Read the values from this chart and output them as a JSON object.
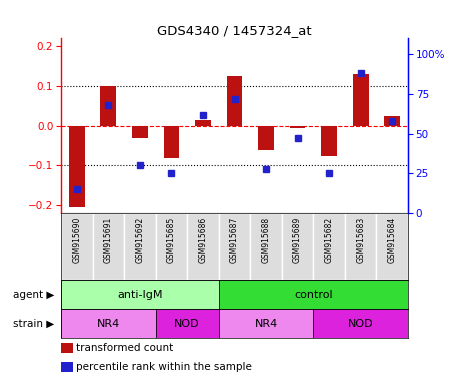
{
  "title": "GDS4340 / 1457324_at",
  "samples": [
    "GSM915690",
    "GSM915691",
    "GSM915692",
    "GSM915685",
    "GSM915686",
    "GSM915687",
    "GSM915688",
    "GSM915689",
    "GSM915682",
    "GSM915683",
    "GSM915684"
  ],
  "red_values": [
    -0.205,
    0.1,
    -0.03,
    -0.08,
    0.015,
    0.125,
    -0.06,
    -0.005,
    -0.075,
    0.13,
    0.025
  ],
  "blue_values": [
    15,
    68,
    30,
    25,
    62,
    72,
    28,
    47,
    25,
    88,
    58
  ],
  "ylim_left": [
    -0.22,
    0.22
  ],
  "ylim_right": [
    0,
    110
  ],
  "yticks_left": [
    -0.2,
    -0.1,
    0.0,
    0.1,
    0.2
  ],
  "yticks_right": [
    0,
    25,
    50,
    75,
    100
  ],
  "ytick_labels_right": [
    "0",
    "25",
    "50",
    "75",
    "100%"
  ],
  "hlines": [
    -0.1,
    0.0,
    0.1
  ],
  "hline_styles": [
    "dotted",
    "dashed",
    "dotted"
  ],
  "hline_colors": [
    "black",
    "red",
    "black"
  ],
  "bar_color": "#BB1111",
  "dot_color": "#2222CC",
  "agent_groups": [
    {
      "label": "anti-IgM",
      "start": 0,
      "end": 5,
      "color": "#AAFFAA"
    },
    {
      "label": "control",
      "start": 5,
      "end": 11,
      "color": "#33DD33"
    }
  ],
  "strain_groups": [
    {
      "label": "NR4",
      "start": 0,
      "end": 3,
      "color": "#EE88EE"
    },
    {
      "label": "NOD",
      "start": 3,
      "end": 5,
      "color": "#DD22DD"
    },
    {
      "label": "NR4",
      "start": 5,
      "end": 8,
      "color": "#EE88EE"
    },
    {
      "label": "NOD",
      "start": 8,
      "end": 11,
      "color": "#DD22DD"
    }
  ],
  "legend_red": "transformed count",
  "legend_blue": "percentile rank within the sample",
  "agent_label": "agent",
  "strain_label": "strain",
  "plot_bg": "#FFFFFF",
  "tick_label_bg": "#CCCCCC",
  "bar_width": 0.5
}
